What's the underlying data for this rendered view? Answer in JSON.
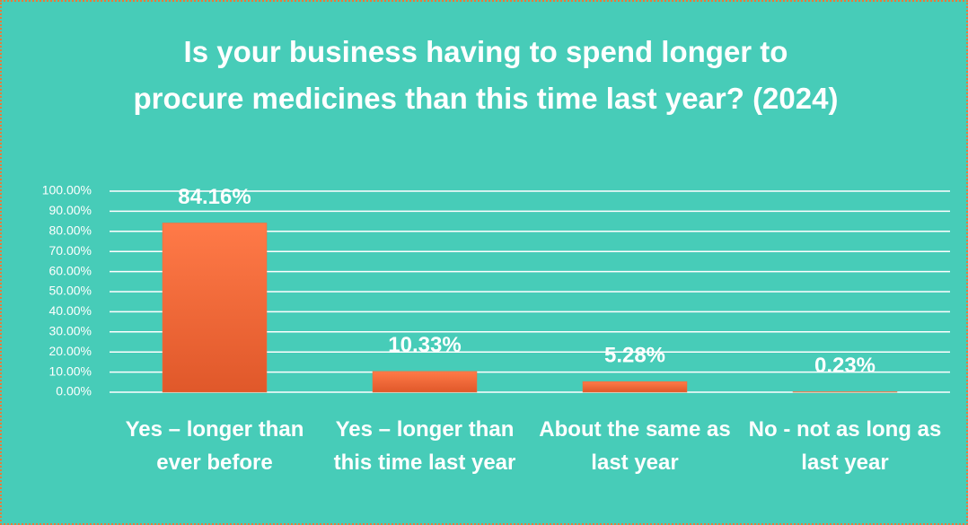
{
  "chart_data": {
    "type": "bar",
    "title": "Is your business having to spend longer to procure medicines than this time last year? (2024)",
    "categories": [
      "Yes – longer than ever before",
      "Yes – longer than this time last year",
      "About the same as last year",
      "No - not as long as last year"
    ],
    "values": [
      84.16,
      10.33,
      5.28,
      0.23
    ],
    "value_labels": [
      "84.16%",
      "10.33%",
      "5.28%",
      "0.23%"
    ],
    "color": "#f06a36",
    "ylim": [
      0,
      100
    ],
    "yticks": [
      {
        "value": 0,
        "label": "0.00%"
      },
      {
        "value": 10,
        "label": "10.00%"
      },
      {
        "value": 20,
        "label": "20.00%"
      },
      {
        "value": 30,
        "label": "30.00%"
      },
      {
        "value": 40,
        "label": "40.00%"
      },
      {
        "value": 50,
        "label": "50.00%"
      },
      {
        "value": 60,
        "label": "60.00%"
      },
      {
        "value": 70,
        "label": "70.00%"
      },
      {
        "value": 80,
        "label": "80.00%"
      },
      {
        "value": 90,
        "label": "90.00%"
      },
      {
        "value": 100,
        "label": "100.00%"
      }
    ],
    "grid": true
  }
}
